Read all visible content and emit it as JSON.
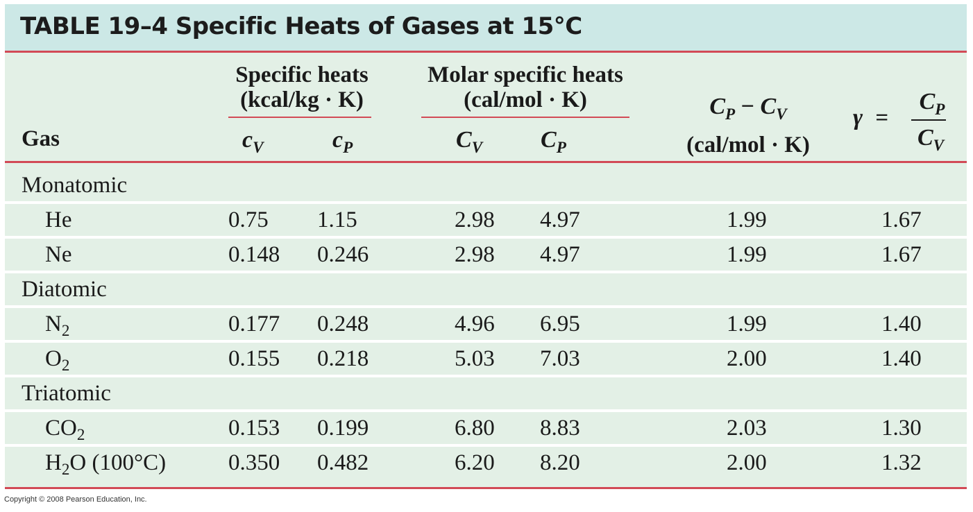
{
  "title": "TABLE 19–4  Specific Heats of Gases at 15°C",
  "header": {
    "gas": "Gas",
    "specific_heats": "Specific heats",
    "specific_heats_units": "(kcal/kg · K)",
    "molar_specific_heats": "Molar specific heats",
    "molar_units": "(cal/mol · K)",
    "cv_lower": "c",
    "cp_lower": "c",
    "cv_upper": "C",
    "cp_upper": "C",
    "sub_v": "V",
    "sub_p": "P",
    "diff_a": "C",
    "diff_minus": " − ",
    "diff_b": "C",
    "diff_units": "(cal/mol · K)",
    "gamma": "γ",
    "equals": "=",
    "gamma_num": "C",
    "gamma_den": "C"
  },
  "groups": [
    {
      "name": "Monatomic",
      "rows": [
        {
          "gas": "He",
          "sub": "",
          "suffix": "",
          "cv": "0.75",
          "cp": "1.15",
          "Cv": "2.98",
          "Cp": "4.97",
          "diff": "1.99",
          "gamma": "1.67"
        },
        {
          "gas": "Ne",
          "sub": "",
          "suffix": "",
          "cv": "0.148",
          "cp": "0.246",
          "Cv": "2.98",
          "Cp": "4.97",
          "diff": "1.99",
          "gamma": "1.67"
        }
      ]
    },
    {
      "name": "Diatomic",
      "rows": [
        {
          "gas": "N",
          "sub": "2",
          "suffix": "",
          "cv": "0.177",
          "cp": "0.248",
          "Cv": "4.96",
          "Cp": "6.95",
          "diff": "1.99",
          "gamma": "1.40"
        },
        {
          "gas": "O",
          "sub": "2",
          "suffix": "",
          "cv": "0.155",
          "cp": "0.218",
          "Cv": "5.03",
          "Cp": "7.03",
          "diff": "2.00",
          "gamma": "1.40"
        }
      ]
    },
    {
      "name": "Triatomic",
      "rows": [
        {
          "gas": "CO",
          "sub": "2",
          "suffix": "",
          "cv": "0.153",
          "cp": "0.199",
          "Cv": "6.80",
          "Cp": "8.83",
          "diff": "2.03",
          "gamma": "1.30"
        },
        {
          "gas": "H",
          "sub": "2",
          "suffix": "O (100°C)",
          "cv": "0.350",
          "cp": "0.482",
          "Cv": "6.20",
          "Cp": "8.20",
          "diff": "2.00",
          "gamma": "1.32"
        }
      ]
    }
  ],
  "copyright": "Copyright © 2008 Pearson Education, Inc.",
  "colors": {
    "title_bg": "#cce8e6",
    "body_bg": "#e3f0e6",
    "rule": "#d24a56"
  }
}
